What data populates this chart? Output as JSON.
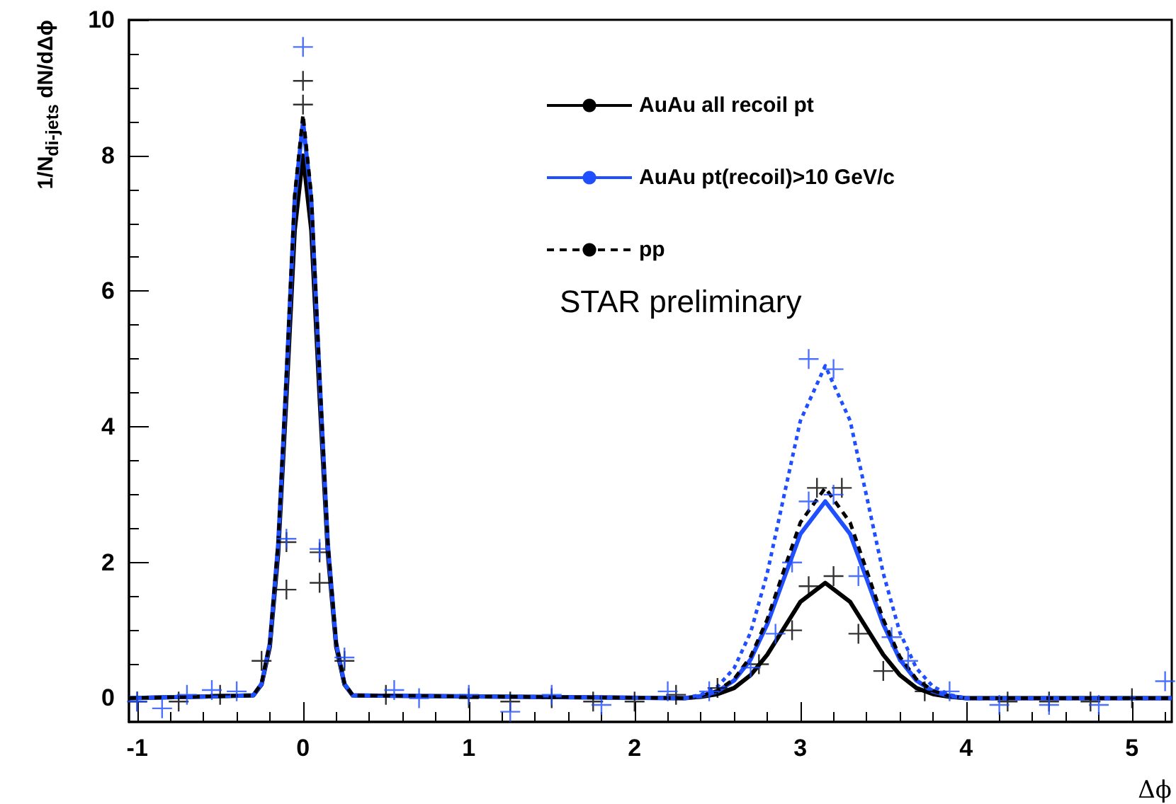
{
  "chart_data": {
    "type": "line",
    "xlabel": "Δϕ",
    "ylabel": "1/N$_{di-jets}$ dN/dΔϕ",
    "annotations": [
      "STAR preliminary"
    ],
    "xlim": [
      -1.05,
      5.24
    ],
    "xticks": [
      -1,
      0,
      1,
      2,
      3,
      4,
      5
    ],
    "ylim": [
      -0.35,
      10
    ],
    "yticks": [
      0,
      2,
      4,
      6,
      8,
      10
    ],
    "grid": false,
    "legend": "top right",
    "marker": "none",
    "series": [
      {
        "name": "AuAu all recoil pt",
        "color": "#000000",
        "line_style": "solid",
        "x": [
          -1.05,
          -0.3,
          -0.25,
          -0.2,
          -0.15,
          -0.1,
          -0.05,
          0,
          0.05,
          0.1,
          0.15,
          0.2,
          0.25,
          0.3,
          2.3,
          2.4,
          2.5,
          2.6,
          2.7,
          2.8,
          2.9,
          3.0,
          3.15,
          3.3,
          3.4,
          3.5,
          3.6,
          3.7,
          3.8,
          3.9,
          4.0,
          5.24
        ],
        "values": [
          0,
          0.04,
          0.2,
          0.76,
          2.13,
          4.44,
          6.9,
          8.0,
          6.9,
          4.44,
          2.13,
          0.76,
          0.2,
          0.04,
          0,
          0.02,
          0.06,
          0.15,
          0.34,
          0.64,
          1.03,
          1.42,
          1.7,
          1.42,
          1.03,
          0.64,
          0.34,
          0.15,
          0.06,
          0.02,
          0,
          0
        ]
      },
      {
        "name": "AuAu pt(recoil)>10 GeV/c",
        "color": "#1f4fff",
        "line_style": "solid",
        "x": [
          -1.05,
          -0.3,
          -0.25,
          -0.2,
          -0.15,
          -0.1,
          -0.05,
          0,
          0.05,
          0.1,
          0.15,
          0.2,
          0.25,
          0.3,
          2.3,
          2.4,
          2.5,
          2.6,
          2.7,
          2.8,
          2.9,
          3.0,
          3.15,
          3.3,
          3.4,
          3.5,
          3.6,
          3.7,
          3.8,
          3.9,
          4.0,
          5.24
        ],
        "values": [
          0,
          0.04,
          0.21,
          0.81,
          2.26,
          4.72,
          7.34,
          8.5,
          7.34,
          4.72,
          2.26,
          0.81,
          0.21,
          0.04,
          0,
          0.03,
          0.1,
          0.26,
          0.57,
          1.09,
          1.76,
          2.42,
          2.9,
          2.42,
          1.76,
          1.09,
          0.57,
          0.26,
          0.1,
          0.03,
          0,
          0
        ]
      },
      {
        "name": "pp",
        "color": "#000000",
        "line_style": "dashed",
        "x": [
          -1.05,
          -0.3,
          -0.25,
          -0.2,
          -0.15,
          -0.1,
          -0.05,
          0,
          0.05,
          0.1,
          0.15,
          0.2,
          0.25,
          0.3,
          2.3,
          2.4,
          2.5,
          2.6,
          2.7,
          2.8,
          2.9,
          3.0,
          3.15,
          3.3,
          3.4,
          3.5,
          3.6,
          3.7,
          3.8,
          3.9,
          4.0,
          5.24
        ],
        "values": [
          0,
          0.04,
          0.22,
          0.82,
          2.29,
          4.77,
          7.42,
          8.6,
          7.42,
          4.77,
          2.29,
          0.82,
          0.22,
          0.04,
          0,
          0.03,
          0.11,
          0.28,
          0.61,
          1.16,
          1.88,
          2.59,
          3.1,
          2.59,
          1.88,
          1.16,
          0.61,
          0.28,
          0.11,
          0.03,
          0,
          0
        ]
      },
      {
        "color": "#1f4fff",
        "line_style": "dotted",
        "x": [
          2.3,
          2.4,
          2.5,
          2.6,
          2.7,
          2.8,
          2.9,
          3.0,
          3.15,
          3.3,
          3.4,
          3.5,
          3.6,
          3.7,
          3.8,
          3.9,
          4.0
        ],
        "values": [
          0,
          0.05,
          0.17,
          0.44,
          0.97,
          1.84,
          2.97,
          4.09,
          4.9,
          4.09,
          2.97,
          1.84,
          0.97,
          0.44,
          0.17,
          0.05,
          0
        ]
      },
      {
        "type": "scatter",
        "marker": "cross",
        "color": "#000000",
        "x": [
          -1,
          -0.75,
          -0.5,
          -0.25,
          -0.1,
          -0.1,
          0,
          0,
          0.1,
          0.1,
          0.25,
          0.5,
          1,
          1.25,
          1.5,
          1.75,
          2,
          2.25,
          2.5,
          2.75,
          2.95,
          3.05,
          3.1,
          3.2,
          3.25,
          3.35,
          3.5,
          3.75,
          4.25,
          4.5,
          4.75,
          5
        ],
        "values": [
          -0.05,
          -0.05,
          0.05,
          0.55,
          2.3,
          1.6,
          9.1,
          8.75,
          2.15,
          1.7,
          0.55,
          0.05,
          0,
          -0.05,
          0,
          -0.05,
          -0.05,
          0.05,
          0.15,
          0.5,
          1.0,
          1.65,
          3.1,
          1.8,
          3.1,
          0.95,
          0.4,
          0.1,
          -0.05,
          -0.05,
          -0.05,
          0
        ]
      },
      {
        "type": "scatter",
        "marker": "cross",
        "color": "#1f4fff",
        "x": [
          -1,
          -0.85,
          -0.7,
          -0.55,
          -0.4,
          -0.1,
          0,
          0.1,
          0.25,
          0.55,
          0.7,
          1,
          1.25,
          1.5,
          1.8,
          2.2,
          2.45,
          2.7,
          2.85,
          2.95,
          3.05,
          3.05,
          3.2,
          3.2,
          3.35,
          3.55,
          3.65,
          3.9,
          4.2,
          4.5,
          4.8,
          5.2
        ],
        "values": [
          -0.05,
          -0.15,
          0.05,
          0.12,
          0.1,
          2.35,
          9.6,
          2.2,
          0.6,
          0.12,
          0,
          0.05,
          -0.2,
          0.05,
          -0.1,
          0.1,
          0.1,
          0.45,
          0.95,
          2.0,
          2.9,
          5.0,
          3.0,
          4.85,
          1.8,
          0.9,
          0.55,
          0.1,
          -0.1,
          -0.1,
          -0.1,
          0.25
        ]
      }
    ]
  }
}
